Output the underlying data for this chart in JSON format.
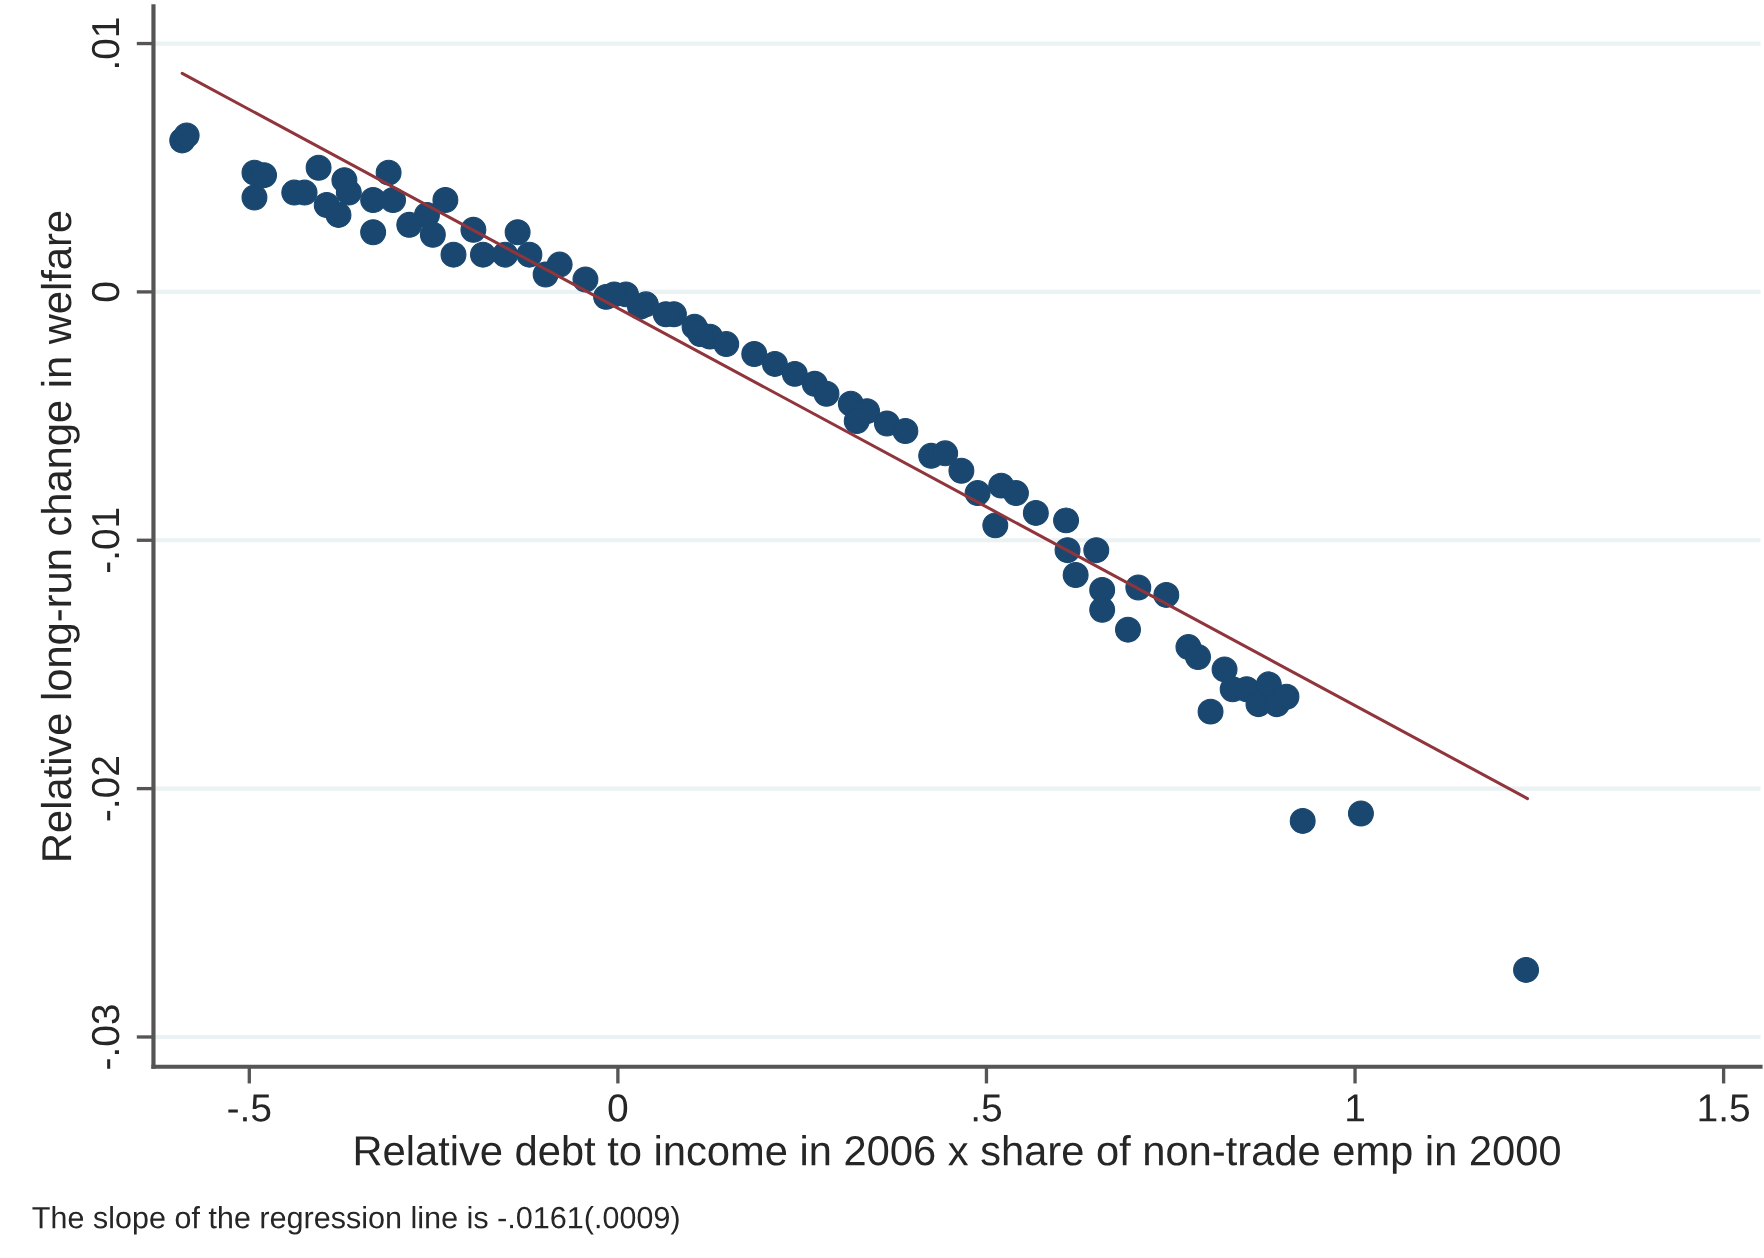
{
  "chart_data": {
    "type": "scatter",
    "xlabel": "Relative debt to income in 2006 x share of non-trade emp in 2000",
    "ylabel": "Relative long-run change in welfare",
    "annotations": [
      "The slope of the regression line is -.0161(.0009)"
    ],
    "xlim": [
      -0.63,
      1.55
    ],
    "ylim": [
      -0.0312,
      0.0115
    ],
    "xticks": [
      {
        "value": -0.5,
        "label": "-.5"
      },
      0,
      {
        "value": 0.5,
        "label": ".5"
      },
      1,
      {
        "value": 1.5,
        "label": "1.5"
      }
    ],
    "yticks": [
      {
        "value": -0.03,
        "label": "-.03"
      },
      {
        "value": -0.02,
        "label": "-.02"
      },
      {
        "value": -0.01,
        "label": "-.01"
      },
      0,
      {
        "value": 0.01,
        "label": ".01"
      }
    ],
    "grid": "y",
    "series": [
      {
        "color": "#1a476f",
        "marker": "circle",
        "x": [
          -0.591,
          -0.585,
          -0.493,
          -0.48,
          -0.493,
          -0.439,
          -0.425,
          -0.406,
          -0.395,
          -0.371,
          -0.365,
          -0.379,
          -0.332,
          -0.311,
          -0.332,
          -0.305,
          -0.283,
          -0.259,
          -0.234,
          -0.251,
          -0.223,
          -0.196,
          -0.183,
          -0.136,
          -0.153,
          -0.12,
          -0.098,
          -0.079,
          -0.044,
          -0.016,
          0.011,
          0.038,
          0.076,
          0.104,
          0.125,
          -0.005,
          0.03,
          0.065,
          0.112,
          0.147,
          0.185,
          0.213,
          0.24,
          0.267,
          0.283,
          0.316,
          0.338,
          0.324,
          0.365,
          0.39,
          0.425,
          0.444,
          0.466,
          0.488,
          0.512,
          0.52,
          0.54,
          0.567,
          0.608,
          0.61,
          0.649,
          0.621,
          0.657,
          0.657,
          0.692,
          0.706,
          0.744,
          0.774,
          0.787,
          0.823,
          0.834,
          0.853,
          0.804,
          0.869,
          0.883,
          0.894,
          0.907,
          0.929,
          1.008,
          1.232
        ],
        "values": [
          0.0061,
          0.0063,
          0.0048,
          0.0047,
          0.0038,
          0.004,
          0.004,
          0.005,
          0.0035,
          0.0045,
          0.004,
          0.0031,
          0.0037,
          0.0048,
          0.0024,
          0.0037,
          0.0027,
          0.0031,
          0.0037,
          0.0023,
          0.0015,
          0.0025,
          0.0015,
          0.0024,
          0.0015,
          0.0015,
          0.0007,
          0.0011,
          0.0005,
          -0.0002,
          -0.0001,
          -0.0005,
          -0.0009,
          -0.0014,
          -0.0018,
          -0.0001,
          -0.0006,
          -0.0009,
          -0.0017,
          -0.0021,
          -0.0025,
          -0.0029,
          -0.0033,
          -0.0037,
          -0.0041,
          -0.0045,
          -0.0048,
          -0.0052,
          -0.0053,
          -0.0056,
          -0.0066,
          -0.0065,
          -0.0072,
          -0.0081,
          -0.0094,
          -0.0078,
          -0.0081,
          -0.0089,
          -0.0092,
          -0.0104,
          -0.0104,
          -0.0114,
          -0.012,
          -0.0128,
          -0.0136,
          -0.0119,
          -0.0122,
          -0.0143,
          -0.0147,
          -0.0152,
          -0.016,
          -0.016,
          -0.0169,
          -0.0166,
          -0.0158,
          -0.0166,
          -0.0163,
          -0.0213,
          -0.021,
          -0.0273
        ]
      },
      {
        "type": "line",
        "color": "#90353b",
        "x": [
          -0.591,
          1.234
        ],
        "values": [
          0.0088,
          -0.0204
        ]
      }
    ]
  }
}
